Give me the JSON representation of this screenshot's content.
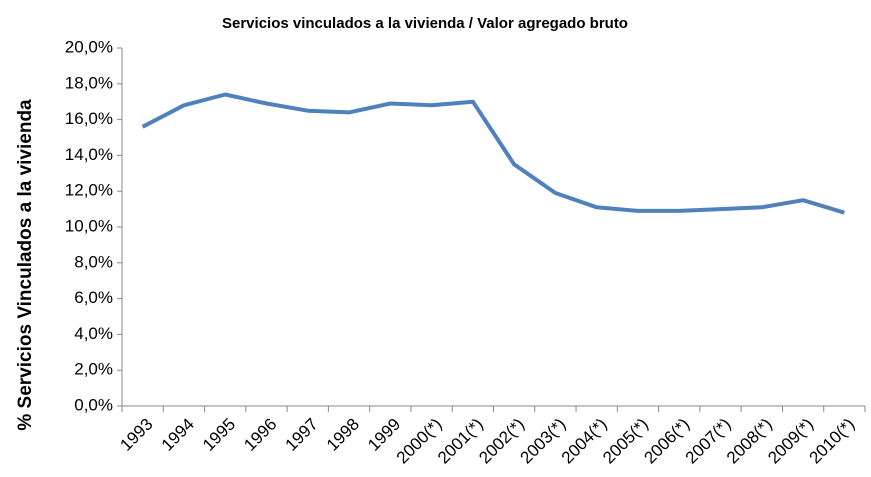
{
  "chart_data": {
    "type": "line",
    "title": "Servicios  vinculados  a la vivienda  / Valor agregado bruto",
    "y_label": "% Servicios Vinculados a la vivienda",
    "categories": [
      "1993",
      "1994",
      "1995",
      "1996",
      "1997",
      "1998",
      "1999",
      "2000(*)",
      "2001(*)",
      "2002(*)",
      "2003(*)",
      "2004(*)",
      "2005(*)",
      "2006(*)",
      "2007(*)",
      "2008(*)",
      "2009(*)",
      "2010(*)"
    ],
    "series": [
      {
        "name": "% Servicios Vinculados a la vivienda",
        "color": "#4f81bd",
        "values": [
          15.6,
          16.8,
          17.4,
          16.9,
          16.5,
          16.4,
          16.9,
          16.8,
          17.0,
          13.5,
          11.9,
          11.1,
          10.9,
          10.9,
          11.0,
          11.1,
          11.5,
          10.8
        ]
      }
    ],
    "ylim": [
      0,
      20
    ],
    "yticks": [
      {
        "value": 0,
        "label": "0,0%"
      },
      {
        "value": 2,
        "label": "2,0%"
      },
      {
        "value": 4,
        "label": "4,0%"
      },
      {
        "value": 6,
        "label": "6,0%"
      },
      {
        "value": 8,
        "label": "8,0%"
      },
      {
        "value": 10,
        "label": "10,0%"
      },
      {
        "value": 12,
        "label": "12,0%"
      },
      {
        "value": 14,
        "label": "14,0%"
      },
      {
        "value": 16,
        "label": "16,0%"
      },
      {
        "value": 18,
        "label": "18,0%"
      },
      {
        "value": 20,
        "label": "20,0%"
      }
    ]
  }
}
